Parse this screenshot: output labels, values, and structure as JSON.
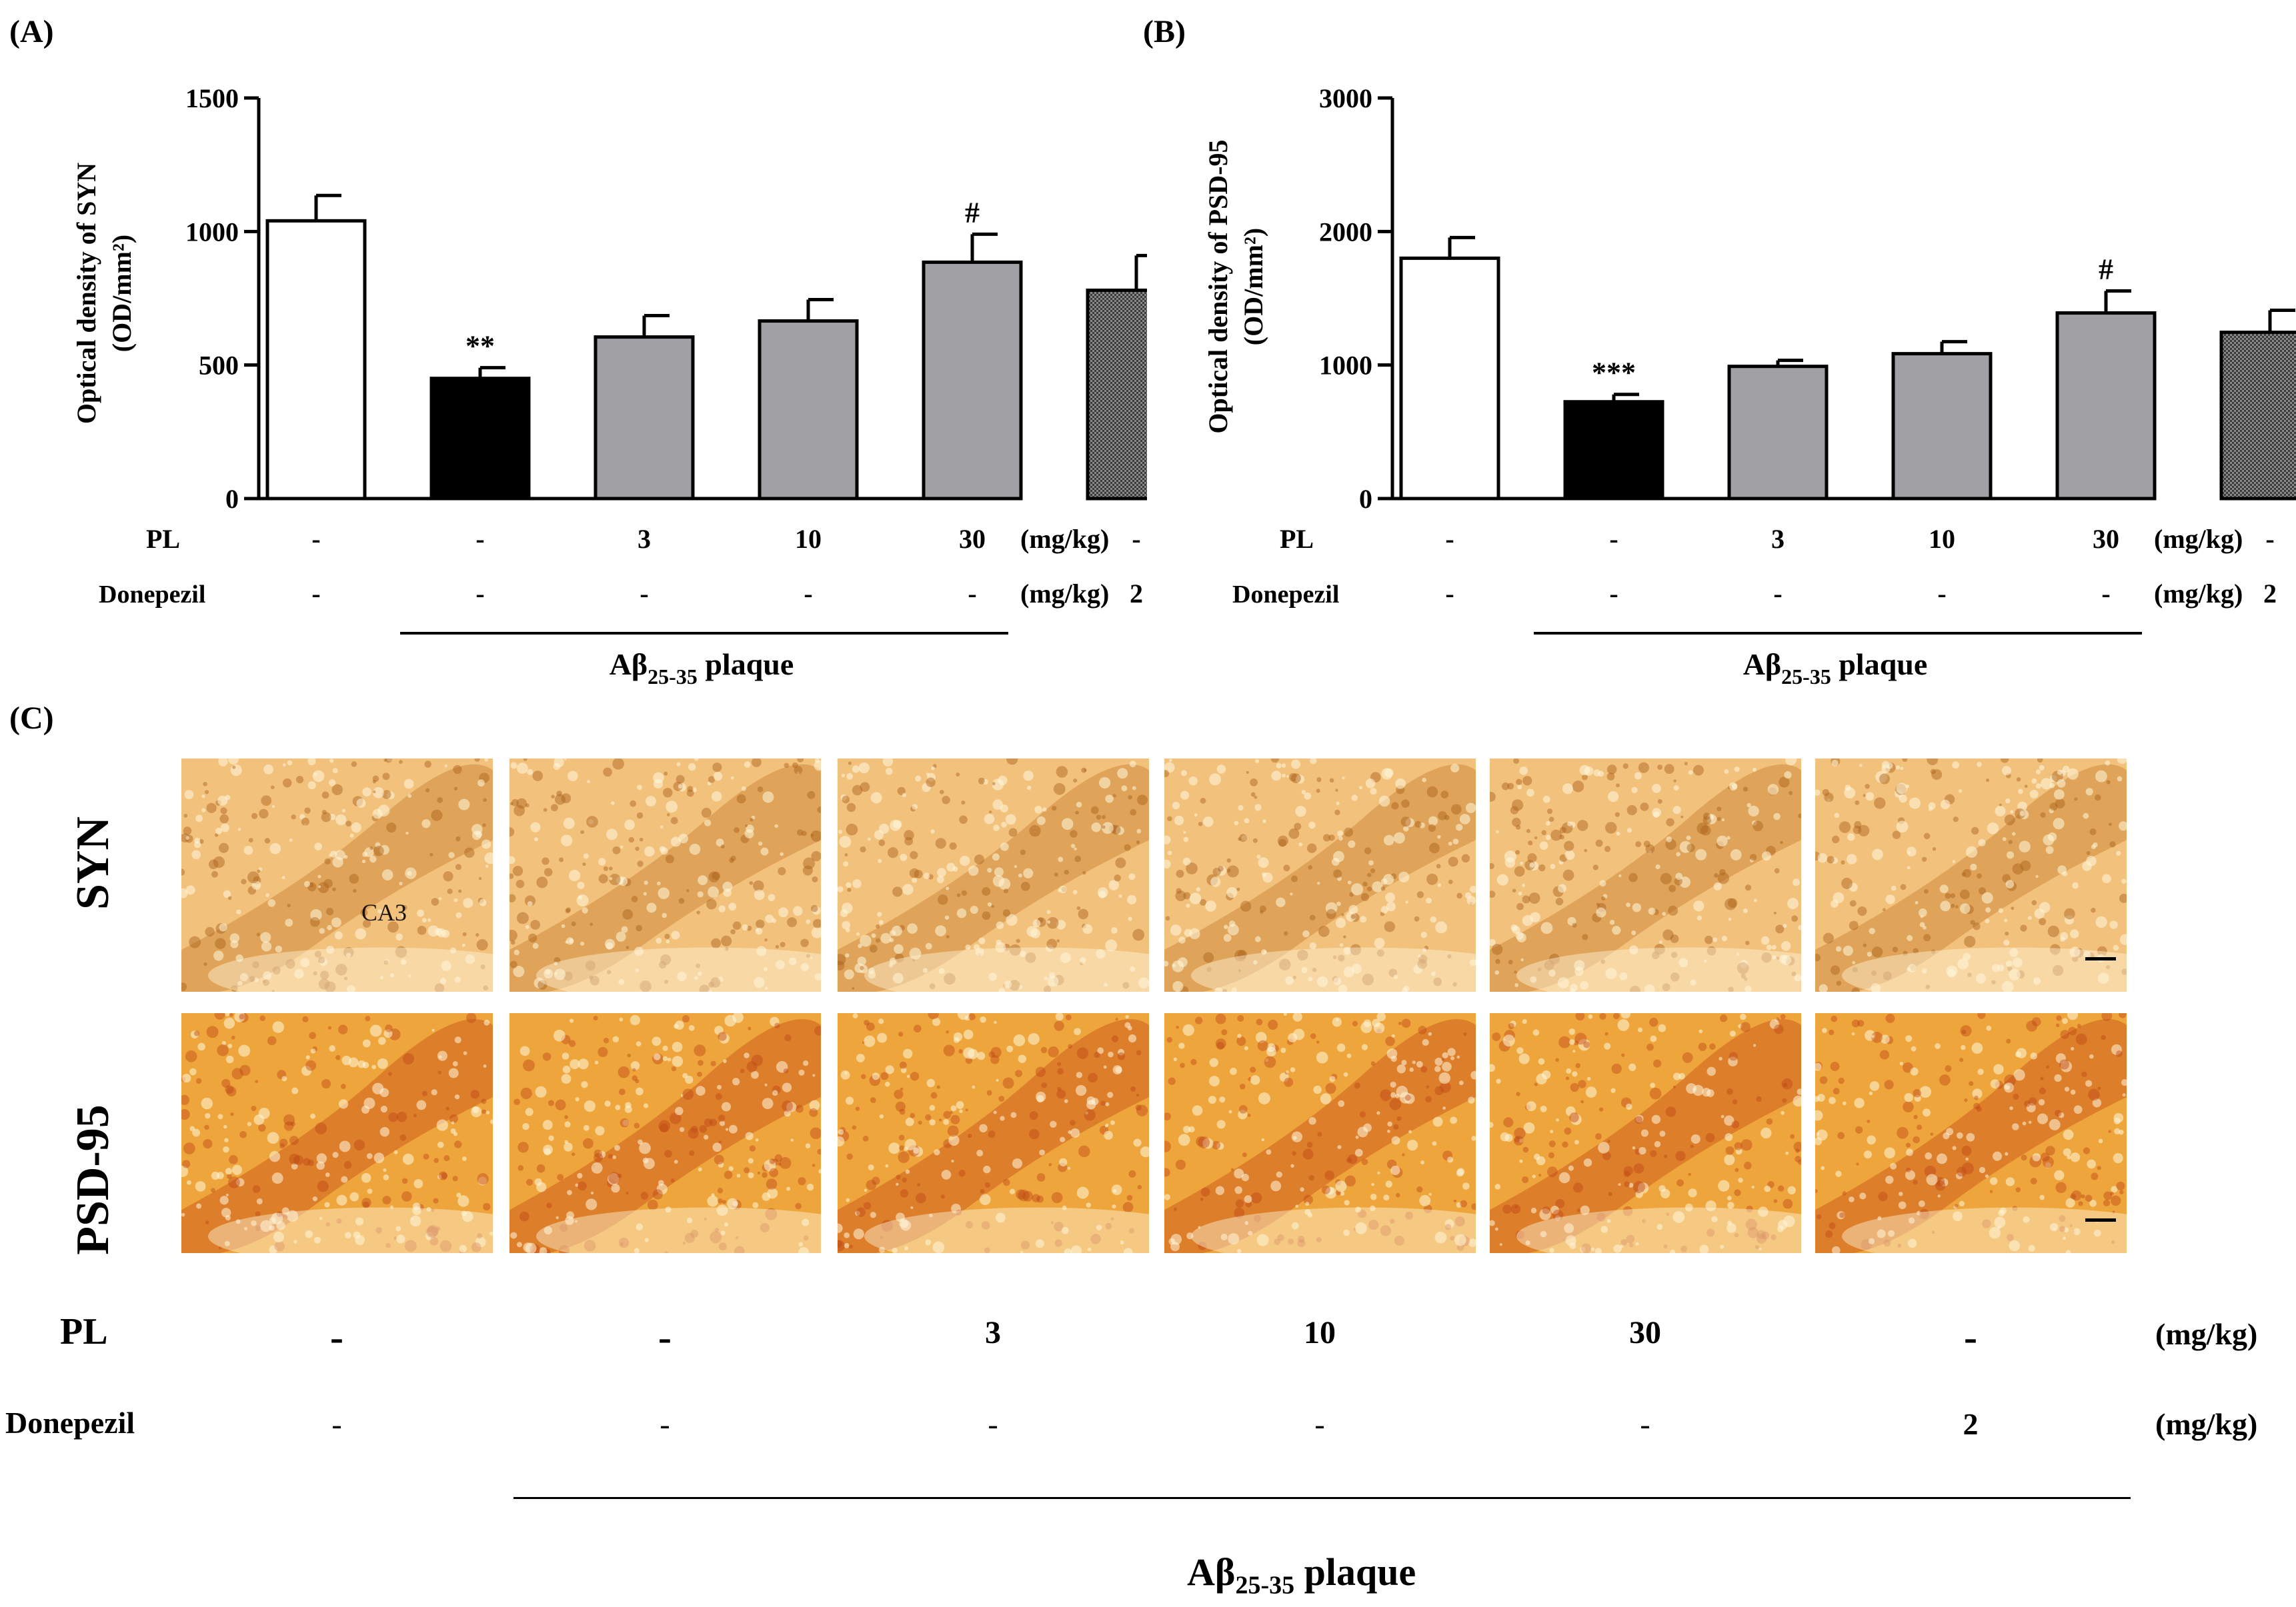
{
  "panels": {
    "a": "(A)",
    "b": "(B)",
    "c": "(C)"
  },
  "colors": {
    "control": "#ffffff",
    "abeta": "#000000",
    "pl": "#a0a0a5",
    "donepezil": "#6e6e6e",
    "stain_syn": "#e9a94e",
    "stain_psd": "#e08a1c"
  },
  "chart_data": [
    {
      "type": "bar",
      "title": "",
      "ylabel_line1": "Optical density of SYN",
      "ylabel_line2": "(OD/mm²)",
      "ylim": [
        0,
        1500
      ],
      "yticks": [
        "0",
        "500",
        "1000",
        "1500"
      ],
      "values": [
        1040,
        450,
        605,
        665,
        885,
        780
      ],
      "errors": [
        95,
        40,
        80,
        80,
        105,
        130
      ],
      "annotations": [
        "",
        "**",
        "",
        "",
        "#",
        ""
      ],
      "fills": [
        "control",
        "abeta",
        "pl",
        "pl",
        "pl",
        "donepezil"
      ],
      "pl_row": {
        "label": "PL",
        "values": [
          "-",
          "-",
          "3",
          "10",
          "30",
          "-"
        ],
        "unit": "(mg/kg)"
      },
      "donepezil_row": {
        "label": "Donepezil",
        "values": [
          "-",
          "-",
          "-",
          "-",
          "-",
          "2"
        ],
        "unit": "(mg/kg)"
      },
      "group_label": {
        "prefix": "Aβ",
        "sub": "25-35",
        "suffix": " plaque"
      }
    },
    {
      "type": "bar",
      "title": "",
      "ylabel_line1": "Optical density of PSD-95",
      "ylabel_line2": "(OD/mm²)",
      "ylim": [
        0,
        3000
      ],
      "yticks": [
        "0",
        "1000",
        "2000",
        "3000"
      ],
      "values": [
        1800,
        725,
        990,
        1085,
        1390,
        1245
      ],
      "errors": [
        155,
        55,
        45,
        90,
        165,
        165
      ],
      "annotations": [
        "",
        "***",
        "",
        "",
        "#",
        ""
      ],
      "fills": [
        "control",
        "abeta",
        "pl",
        "pl",
        "pl",
        "donepezil"
      ],
      "pl_row": {
        "label": "PL",
        "values": [
          "-",
          "-",
          "3",
          "10",
          "30",
          "-"
        ],
        "unit": "(mg/kg)"
      },
      "donepezil_row": {
        "label": "Donepezil",
        "values": [
          "-",
          "-",
          "-",
          "-",
          "-",
          "2"
        ],
        "unit": "(mg/kg)"
      },
      "group_label": {
        "prefix": "Aβ",
        "sub": "25-35",
        "suffix": " plaque"
      }
    }
  ],
  "micrographs": {
    "rows": [
      {
        "label": "SYN",
        "annotation": "CA3"
      },
      {
        "label": "PSD-95",
        "annotation": ""
      }
    ],
    "conditions": {
      "pl_label": "PL",
      "pl_values": [
        "-",
        "-",
        "3",
        "10",
        "30",
        "-"
      ],
      "pl_unit": "(mg/kg)",
      "donepezil_label": "Donepezil",
      "donepezil_values": [
        "-",
        "-",
        "-",
        "-",
        "-",
        "2"
      ],
      "donepezil_unit": "(mg/kg)",
      "group_label": {
        "prefix": "Aβ",
        "sub": "25-35",
        "suffix": " plaque"
      }
    }
  }
}
